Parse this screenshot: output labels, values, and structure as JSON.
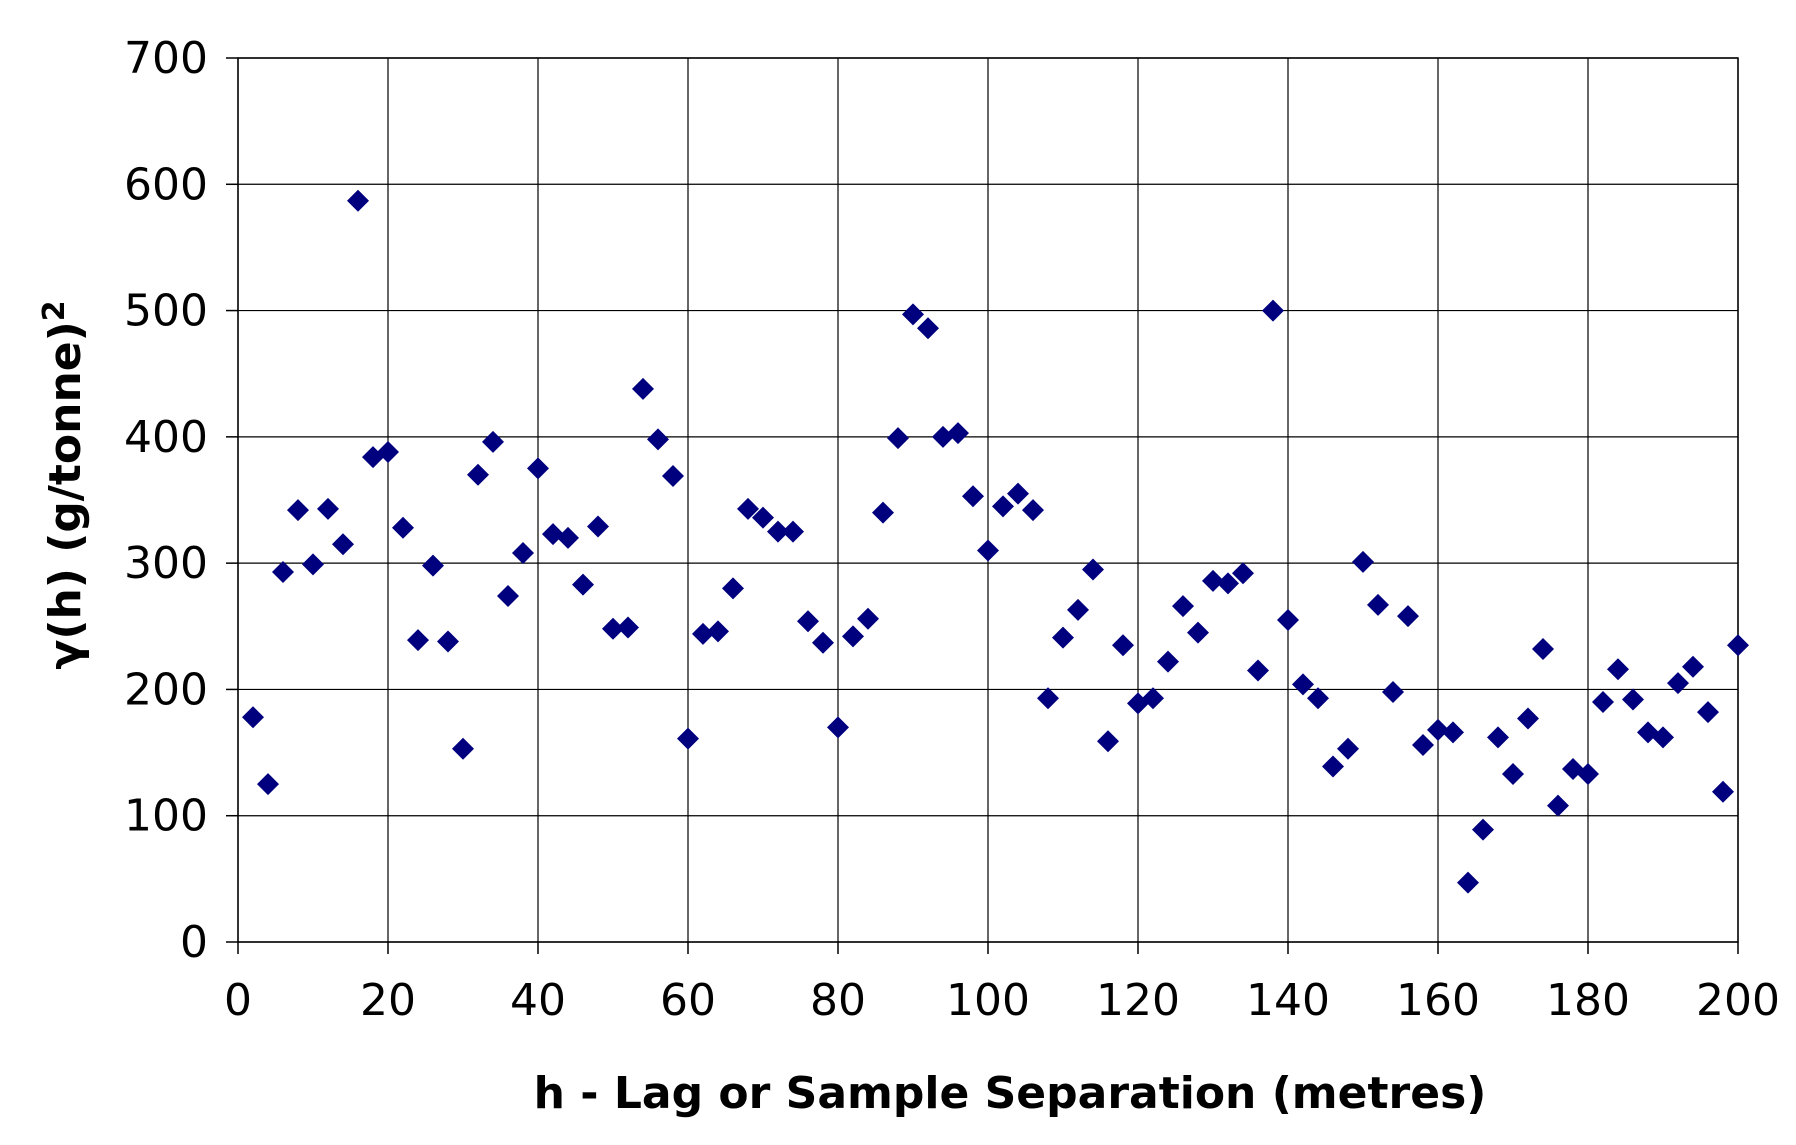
{
  "chart_data": {
    "type": "scatter",
    "title": "",
    "xlabel": "h - Lag or Sample Separation (metres)",
    "ylabel": "γ(h) (g/tonne)",
    "ylabel_superscript": "2",
    "xlim": [
      0,
      200
    ],
    "ylim": [
      0,
      700
    ],
    "xticks": [
      0,
      20,
      40,
      60,
      80,
      100,
      120,
      140,
      160,
      180,
      200
    ],
    "yticks": [
      0,
      100,
      200,
      300,
      400,
      500,
      600,
      700
    ],
    "grid": true,
    "legend": "none",
    "marker": "diamond",
    "color": "#00007f",
    "series": [
      {
        "x": [
          2,
          4,
          6,
          8,
          10,
          12,
          14,
          16,
          18,
          20,
          22,
          24,
          26,
          28,
          30,
          32,
          34,
          36,
          38,
          40,
          42,
          44,
          46,
          48,
          50,
          52,
          54,
          56,
          58,
          60,
          62,
          64,
          66,
          68,
          70,
          72,
          74,
          76,
          78,
          80,
          82,
          84,
          86,
          88,
          90,
          92,
          94,
          96,
          98,
          100,
          102,
          104,
          106,
          108,
          110,
          112,
          114,
          116,
          118,
          120,
          122,
          124,
          126,
          128,
          130,
          132,
          134,
          136,
          138,
          140,
          142,
          144,
          146,
          148,
          150,
          152,
          154,
          156,
          158,
          160,
          162,
          164,
          166,
          168,
          170,
          172,
          174,
          176,
          178,
          180,
          182,
          184,
          186,
          188,
          190,
          192,
          194,
          196,
          198,
          200
        ],
        "y": [
          178,
          125,
          293,
          342,
          299,
          343,
          315,
          587,
          384,
          388,
          328,
          239,
          298,
          238,
          153,
          370,
          396,
          274,
          308,
          375,
          323,
          320,
          283,
          329,
          248,
          249,
          438,
          398,
          369,
          161,
          244,
          246,
          280,
          343,
          336,
          325,
          325,
          254,
          237,
          170,
          242,
          256,
          340,
          399,
          497,
          486,
          400,
          403,
          353,
          310,
          345,
          355,
          342,
          193,
          241,
          263,
          295,
          159,
          235,
          189,
          193,
          222,
          266,
          245,
          286,
          284,
          292,
          215,
          500,
          255,
          204,
          193,
          139,
          153,
          301,
          267,
          198,
          258,
          156,
          168,
          166,
          47,
          89,
          162,
          133,
          177,
          232,
          108,
          137,
          133,
          190,
          216,
          192,
          166,
          162,
          205,
          218,
          182,
          119,
          235
        ]
      }
    ]
  }
}
